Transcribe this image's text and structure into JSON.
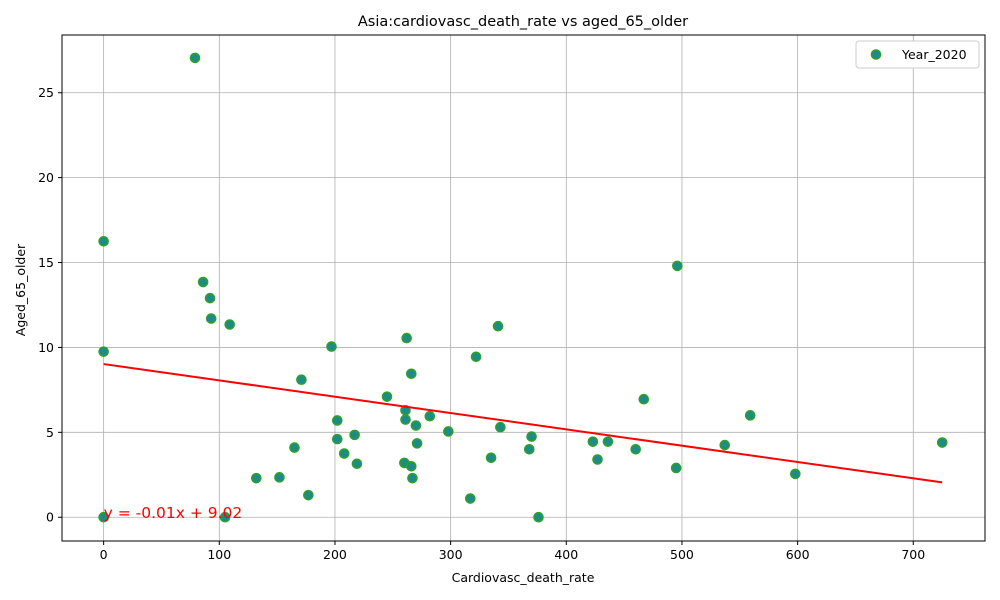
{
  "chart_data": {
    "type": "scatter",
    "title": "Asia:cardiovasc_death_rate vs aged_65_older",
    "xlabel": "Cardiovasc_death_rate",
    "ylabel": "Aged_65_older",
    "xlim": [
      -36,
      762
    ],
    "ylim": [
      -1.4,
      28.4
    ],
    "xticks": [
      0,
      100,
      200,
      300,
      400,
      500,
      600,
      700
    ],
    "yticks": [
      0,
      5,
      10,
      15,
      20,
      25
    ],
    "grid": true,
    "legend": {
      "position": "top-right",
      "entries": [
        "Year_2020"
      ]
    },
    "colors": {
      "point_fill": "#1f8a8a",
      "point_edge": "#2ca02c",
      "regression": "#ff0000"
    },
    "series": [
      {
        "name": "Year_2020",
        "points": [
          [
            79,
            27.05
          ],
          [
            0,
            16.25
          ],
          [
            0,
            9.75
          ],
          [
            0,
            0
          ],
          [
            86,
            13.85
          ],
          [
            92,
            12.9
          ],
          [
            93,
            11.7
          ],
          [
            109,
            11.35
          ],
          [
            105,
            0
          ],
          [
            132,
            2.3
          ],
          [
            152,
            2.35
          ],
          [
            165,
            4.1
          ],
          [
            171,
            8.1
          ],
          [
            177,
            1.3
          ],
          [
            197,
            10.05
          ],
          [
            202,
            5.7
          ],
          [
            202,
            4.6
          ],
          [
            208,
            3.75
          ],
          [
            217,
            4.85
          ],
          [
            219,
            3.15
          ],
          [
            245,
            7.1
          ],
          [
            260,
            3.2
          ],
          [
            261,
            6.3
          ],
          [
            261,
            5.75
          ],
          [
            262,
            10.55
          ],
          [
            266,
            8.45
          ],
          [
            266,
            3.0
          ],
          [
            267,
            2.3
          ],
          [
            270,
            5.4
          ],
          [
            271,
            4.35
          ],
          [
            282,
            5.95
          ],
          [
            298,
            5.05
          ],
          [
            317,
            1.1
          ],
          [
            322,
            9.45
          ],
          [
            335,
            3.5
          ],
          [
            341,
            11.25
          ],
          [
            343,
            5.3
          ],
          [
            368,
            4.0
          ],
          [
            370,
            4.75
          ],
          [
            376,
            0
          ],
          [
            423,
            4.45
          ],
          [
            427,
            3.4
          ],
          [
            436,
            4.45
          ],
          [
            460,
            4.0
          ],
          [
            467,
            6.95
          ],
          [
            495,
            2.9
          ],
          [
            496,
            14.8
          ],
          [
            537,
            4.25
          ],
          [
            559,
            6.0
          ],
          [
            598,
            2.55
          ],
          [
            725,
            4.4
          ]
        ]
      }
    ],
    "regression": {
      "slope": -0.01,
      "intercept": 9.02,
      "x_range": [
        0,
        725
      ],
      "y_start": 9.02,
      "y_end": 2.05,
      "label": "y = -0.01x + 9.02"
    }
  }
}
